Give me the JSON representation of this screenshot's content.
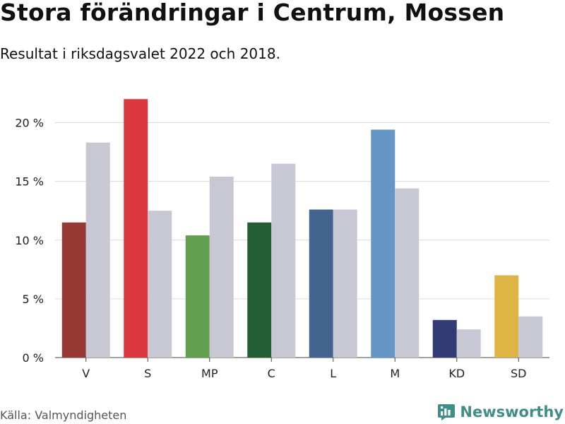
{
  "header": {
    "title": "Stora förändringar i Centrum, Mossen",
    "subtitle": "Resultat i riksdagsvalet 2022 och 2018."
  },
  "footer": {
    "source": "Källa: Valmyndigheten",
    "brand": "Newsworthy",
    "brand_color": "#3f8f86",
    "brand_icon": "newsworthy-logo-icon"
  },
  "chart_data": {
    "type": "bar",
    "categories": [
      "V",
      "S",
      "MP",
      "C",
      "L",
      "M",
      "KD",
      "SD"
    ],
    "series": [
      {
        "values": [
          11.5,
          22.0,
          10.4,
          11.5,
          12.6,
          19.4,
          3.2,
          7.0
        ],
        "colors": [
          "#973934",
          "#dd3740",
          "#62a050",
          "#235e34",
          "#43648f",
          "#6497c6",
          "#313c74",
          "#deb444"
        ]
      },
      {
        "values": [
          18.3,
          12.5,
          15.4,
          16.5,
          12.6,
          14.4,
          2.4,
          3.5
        ],
        "colors": [
          "#c8c8d4",
          "#c8c8d4",
          "#c8c8d4",
          "#c8c8d4",
          "#c8c8d4",
          "#c8c8d4",
          "#c8c8d4",
          "#c8c8d4"
        ]
      }
    ],
    "y_ticks": [
      0,
      5,
      10,
      15,
      20
    ],
    "y_tick_labels": [
      "0 %",
      "5 %",
      "10 %",
      "15 %",
      "20 %"
    ],
    "ylim": [
      0,
      22
    ],
    "grid": true,
    "legend": "none"
  }
}
